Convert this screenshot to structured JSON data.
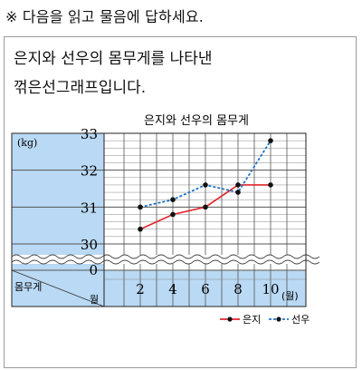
{
  "instruction": "※ 다음을 읽고 물음에 답하세요.",
  "question": {
    "lines": [
      "은지와 선우의 몸무게를 나타낸",
      "꺾은선그래프입니다."
    ]
  },
  "chart_data": {
    "type": "line",
    "title": "은지와 선우의 몸무게",
    "unit_y": "(kg)",
    "unit_x": "(월)",
    "header_label_top": "몸무게",
    "header_label_bottom": "월",
    "x": [
      2,
      4,
      6,
      8,
      10
    ],
    "x_tick_labels": [
      "2",
      "4",
      "6",
      "8",
      "10"
    ],
    "y_tick_values": [
      30,
      31,
      32,
      33
    ],
    "y_tick_labels": [
      "30",
      "31",
      "32",
      "33"
    ],
    "y_zero_label": "0",
    "ylim": [
      30,
      33
    ],
    "y_break": true,
    "grid": true,
    "minor_step": 0.2,
    "legend_position": "bottom-right",
    "series": [
      {
        "name": "은지",
        "style": "solid",
        "color": "#e0262c",
        "values": [
          30.4,
          30.8,
          31.0,
          31.6,
          31.6
        ]
      },
      {
        "name": "선우",
        "style": "dotted",
        "color": "#1f73c8",
        "values": [
          31.0,
          31.2,
          31.6,
          31.4,
          32.8
        ]
      }
    ],
    "colors": {
      "axis_band": "#b9d9f4",
      "grid": "#555555",
      "text": "#111111"
    }
  }
}
